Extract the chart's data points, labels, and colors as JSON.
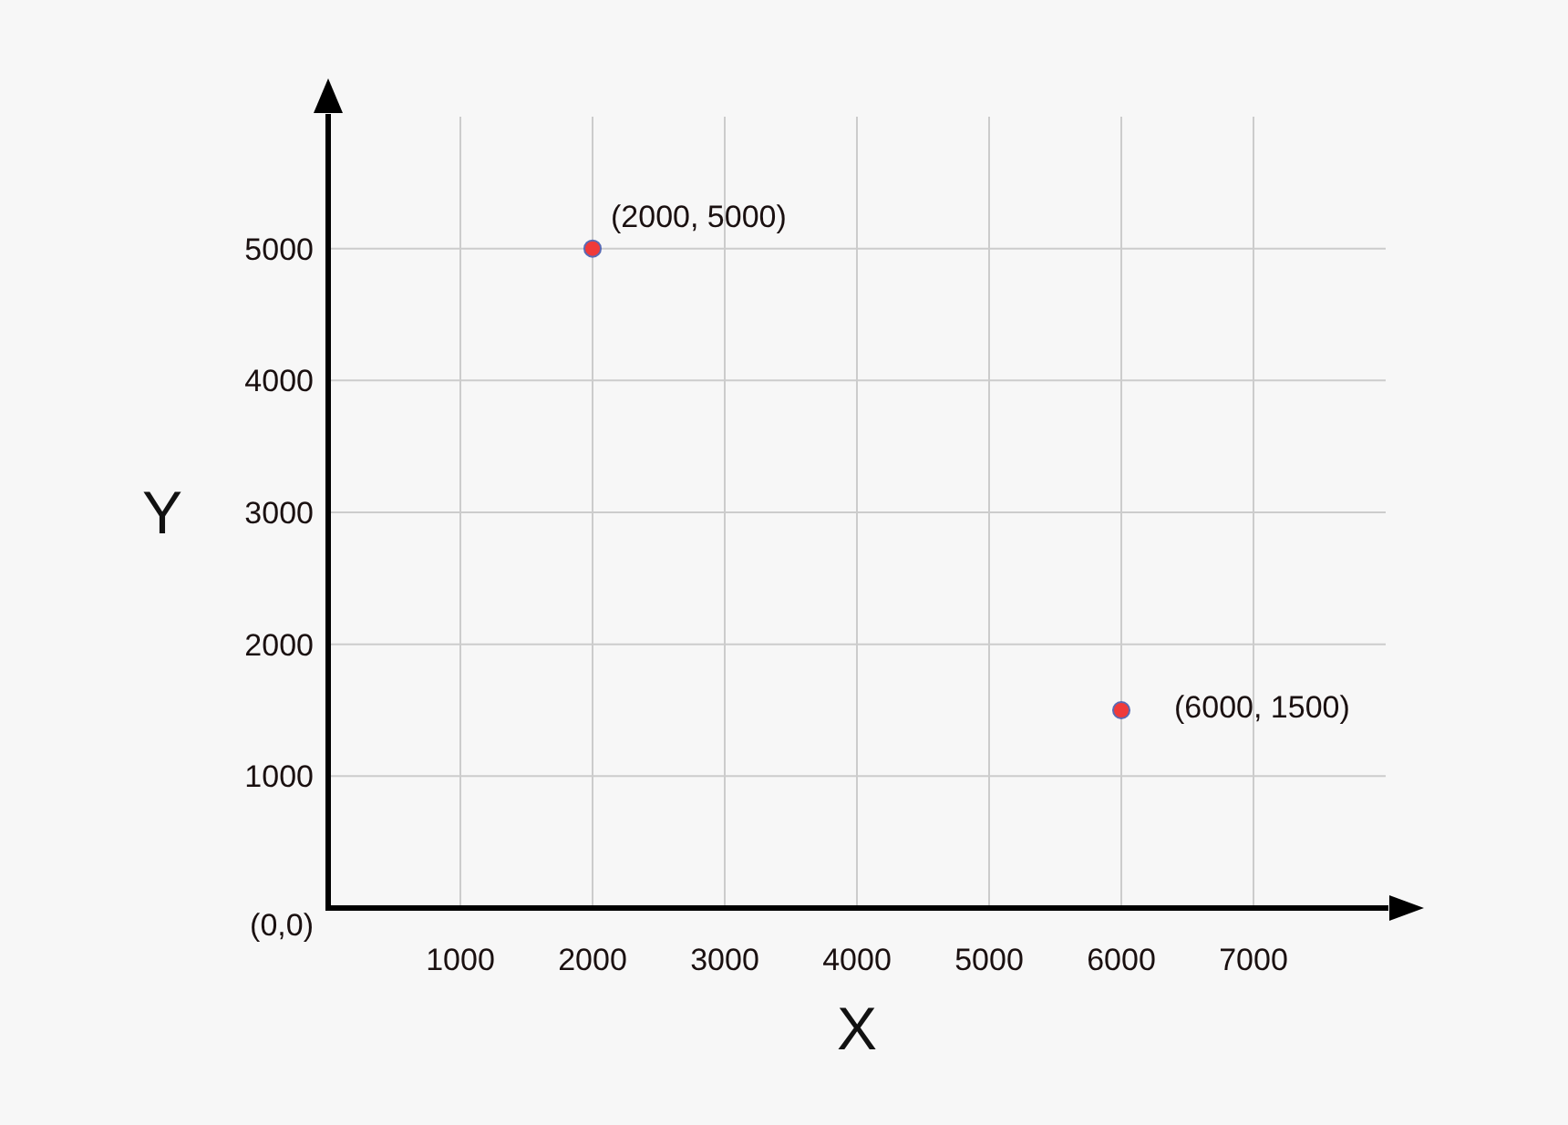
{
  "chart_data": {
    "type": "scatter",
    "xlabel": "X",
    "ylabel": "Y",
    "x": [
      2000,
      6000
    ],
    "values": [
      5000,
      1500
    ],
    "color": "#f03a3a",
    "marker": "circle",
    "value_labels": [
      "(2000, 5000)",
      "(6000, 1500)"
    ],
    "xlim": [
      0,
      8000
    ],
    "ylim": [
      0,
      6000
    ],
    "xticks": [
      1000,
      2000,
      3000,
      4000,
      5000,
      6000,
      7000
    ],
    "yticks": [
      {
        "value": 0,
        "label": "(0,0)"
      },
      1000,
      2000,
      3000,
      4000,
      5000
    ],
    "grid": true
  }
}
